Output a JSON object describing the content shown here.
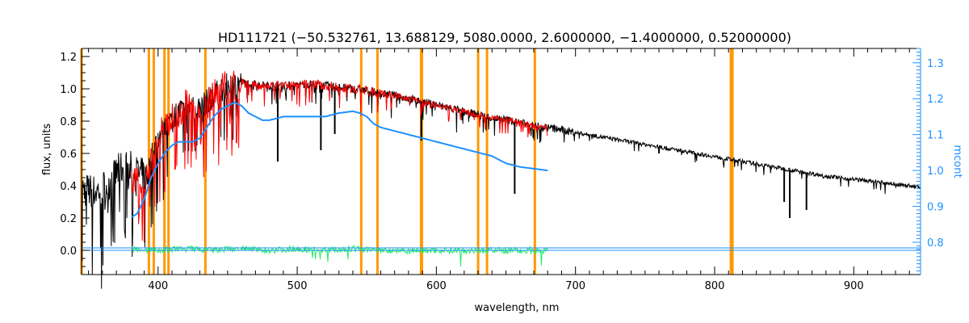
{
  "chart_data": {
    "type": "line",
    "title": "HD111721    (−50.532761, 13.688129, 5080.0000, 2.6000000, −1.4000000, 0.52000000)",
    "xlabel": "wavelength, nm",
    "ylabel": "flux, units",
    "y2label": "mcont",
    "xlim": [
      345,
      948
    ],
    "ylim": [
      -0.15,
      1.25
    ],
    "y2lim": [
      0.71,
      1.34
    ],
    "xticks": [
      400,
      500,
      600,
      700,
      800,
      900
    ],
    "yticks": [
      0.0,
      0.2,
      0.4,
      0.6,
      0.8,
      1.0,
      1.2
    ],
    "y2ticks": [
      0.8,
      0.9,
      1.0,
      1.1,
      1.2,
      1.3
    ],
    "xtick_labels": [
      "400",
      "500",
      "600",
      "700",
      "800",
      "900"
    ],
    "ytick_labels": [
      "0.0",
      "0.2",
      "0.4",
      "0.6",
      "0.8",
      "1.0",
      "1.2"
    ],
    "y2tick_labels": [
      "0.8",
      "0.9",
      "1.0",
      "1.1",
      "1.2",
      "1.3"
    ],
    "grid": false,
    "colors": {
      "observed": "#000000",
      "model": "#ff0000",
      "mcont": "#1e90ff",
      "residual": "#22ee66",
      "masks": "#ff9900",
      "right_axis": "#1e90ff"
    },
    "mask_lines": [
      345,
      393.4,
      396.9,
      404.6,
      407.5,
      434.0,
      546.0,
      557.7,
      589.0,
      589.6,
      630.0,
      636.4,
      670.8,
      811.7,
      812.8
    ],
    "series": [
      {
        "x": [
          345,
          355,
          365,
          372,
          378,
          385,
          392,
          400,
          410,
          420,
          430,
          440,
          450,
          460,
          470,
          480,
          490,
          500,
          510,
          520,
          530,
          540,
          550,
          560,
          570,
          580,
          590,
          600,
          610,
          620,
          630,
          640,
          650,
          660,
          670,
          680,
          700,
          720,
          740,
          760,
          780,
          800,
          820,
          840,
          860,
          880,
          900,
          920,
          940,
          948
        ],
        "y": [
          0.38,
          0.36,
          0.42,
          0.5,
          0.52,
          0.48,
          0.45,
          0.7,
          0.82,
          0.9,
          0.88,
          0.96,
          1.02,
          1.04,
          1.03,
          1.02,
          1.02,
          1.02,
          1.03,
          1.02,
          1.01,
          1.0,
          0.99,
          0.97,
          0.96,
          0.94,
          0.92,
          0.9,
          0.88,
          0.86,
          0.84,
          0.82,
          0.81,
          0.79,
          0.77,
          0.76,
          0.73,
          0.7,
          0.67,
          0.64,
          0.61,
          0.58,
          0.55,
          0.52,
          0.49,
          0.46,
          0.44,
          0.42,
          0.4,
          0.39
        ]
      },
      {
        "x": [
          381,
          390,
          400,
          410,
          420,
          430,
          440,
          450,
          460,
          470,
          480,
          490,
          500,
          510,
          520,
          530,
          540,
          550,
          560,
          570,
          580,
          590,
          600,
          610,
          620,
          630,
          640,
          650,
          660,
          670,
          680
        ],
        "y": [
          0.4,
          0.46,
          0.7,
          0.82,
          0.9,
          0.86,
          0.96,
          1.02,
          1.04,
          1.03,
          1.02,
          1.02,
          1.02,
          1.03,
          1.02,
          1.01,
          1.0,
          0.99,
          0.97,
          0.96,
          0.94,
          0.92,
          0.9,
          0.88,
          0.86,
          0.84,
          0.82,
          0.81,
          0.79,
          0.77,
          0.76
        ]
      },
      {
        "axis": "right",
        "x": [
          381,
          385,
          390,
          395,
          400,
          405,
          410,
          415,
          420,
          425,
          430,
          435,
          440,
          445,
          450,
          455,
          460,
          465,
          470,
          475,
          480,
          490,
          500,
          510,
          520,
          530,
          540,
          545,
          550,
          555,
          560,
          570,
          580,
          590,
          600,
          610,
          620,
          630,
          640,
          650,
          660,
          670,
          680
        ],
        "y": [
          0.87,
          0.88,
          0.92,
          0.98,
          1.02,
          1.05,
          1.07,
          1.08,
          1.08,
          1.08,
          1.09,
          1.12,
          1.15,
          1.17,
          1.18,
          1.19,
          1.18,
          1.16,
          1.15,
          1.14,
          1.14,
          1.15,
          1.15,
          1.15,
          1.15,
          1.16,
          1.165,
          1.16,
          1.15,
          1.13,
          1.12,
          1.11,
          1.1,
          1.09,
          1.08,
          1.07,
          1.06,
          1.05,
          1.04,
          1.02,
          1.01,
          1.005,
          1.0
        ]
      },
      {
        "x": [
          381,
          400,
          420,
          440,
          460,
          480,
          500,
          520,
          540,
          560,
          580,
          600,
          620,
          640,
          660,
          670,
          680
        ],
        "y": [
          0.01,
          0.0,
          0.01,
          0.0,
          0.01,
          0.0,
          0.01,
          0.0,
          0.01,
          0.0,
          0.0,
          0.0,
          0.0,
          0.0,
          0.0,
          0.0,
          0.0
        ]
      }
    ]
  }
}
